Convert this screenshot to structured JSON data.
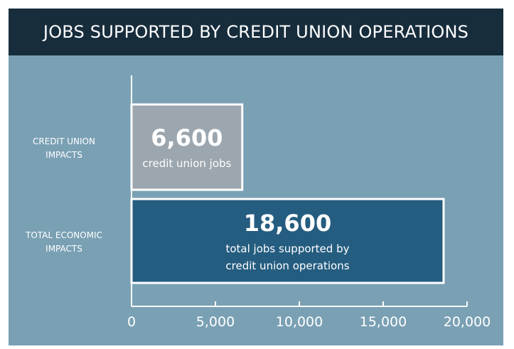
{
  "header": {
    "title": "JOBS SUPPORTED BY CREDIT UNION OPERATIONS"
  },
  "colors": {
    "panel_bg": "#7aa0b4",
    "header_bg": "#172d3c",
    "bar_credit_union": "#9ca6ae",
    "bar_total": "#255d80",
    "bar_border": "#ffffff",
    "text": "#ffffff"
  },
  "chart_data": {
    "type": "bar",
    "orientation": "horizontal",
    "title": "JOBS SUPPORTED BY CREDIT UNION OPERATIONS",
    "categories": [
      [
        "CREDIT UNION",
        "IMPACTS"
      ],
      [
        "TOTAL ECONOMIC",
        "IMPACTS"
      ]
    ],
    "values": [
      6600,
      18600
    ],
    "value_labels": [
      "6,600",
      "18,600"
    ],
    "bar_descriptions": [
      [
        "credit union jobs"
      ],
      [
        "total jobs supported by",
        "credit union operations"
      ]
    ],
    "xlim": [
      0,
      20000
    ],
    "xticks": [
      0,
      5000,
      10000,
      15000,
      20000
    ],
    "xtick_labels": [
      "0",
      "5,000",
      "10,000",
      "15,000",
      "20,000"
    ],
    "xlabel": "",
    "ylabel": "",
    "grid": false,
    "legend": "none"
  }
}
